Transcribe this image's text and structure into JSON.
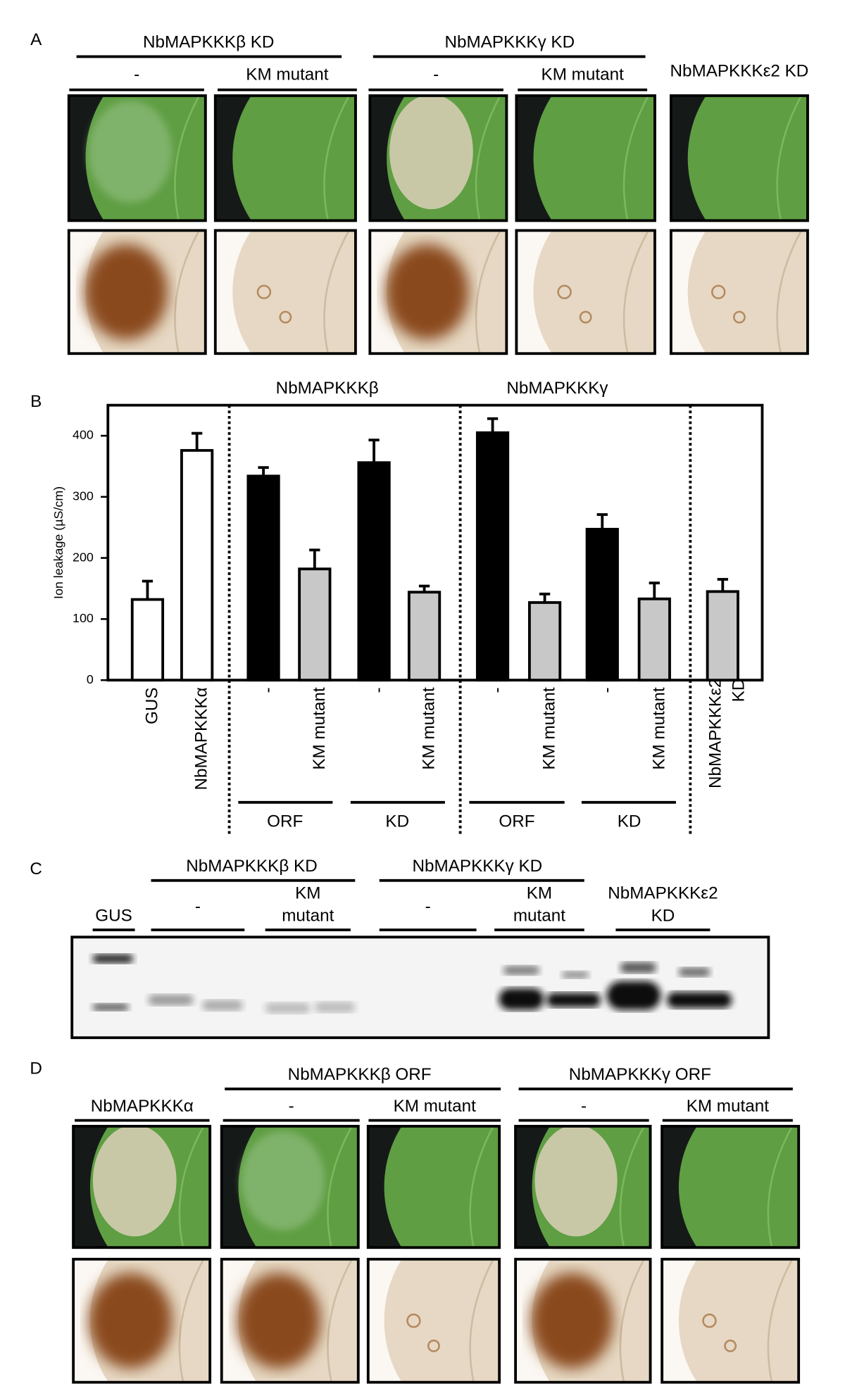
{
  "panel_a": {
    "label": "A",
    "groups": [
      "NbMAPKKKβ KD",
      "NbMAPKKKγ KD"
    ],
    "columns": [
      "-",
      "KM mutant",
      "-",
      "KM mutant",
      "NbMAPKKKε2 KD"
    ]
  },
  "chart_data": {
    "type": "bar",
    "label": "B",
    "y_label": "Ion leakage (µS/cm)",
    "categories": [
      "GUS",
      "NbMAPKKKα",
      "-",
      "KM mutant",
      "-",
      "KM mutant",
      "-",
      "KM mutant",
      "-",
      "KM mutant",
      "NbMAPKKKε2 KD"
    ],
    "values": [
      132,
      376,
      334,
      182,
      356,
      144,
      405,
      127,
      247,
      133,
      145
    ],
    "errors": [
      30,
      28,
      14,
      31,
      37,
      10,
      23,
      14,
      24,
      26,
      20
    ],
    "colors": [
      "#ffffff",
      "#ffffff",
      "#000000",
      "#c8c8c8",
      "#000000",
      "#c8c8c8",
      "#000000",
      "#c8c8c8",
      "#000000",
      "#c8c8c8",
      "#c8c8c8"
    ],
    "ylim": [
      0,
      450
    ],
    "yticks": [
      0,
      100,
      200,
      300,
      400
    ],
    "groups": [
      "NbMAPKKKβ",
      "NbMAPKKKγ"
    ],
    "subgroups": [
      "ORF",
      "KD",
      "ORF",
      "KD"
    ]
  },
  "panel_c": {
    "label": "C",
    "groups": [
      "NbMAPKKKβ KD",
      "NbMAPKKKγ KD"
    ],
    "lanes": [
      [
        "GUS"
      ],
      [
        "-"
      ],
      [
        "KM",
        "mutant"
      ],
      [
        "-"
      ],
      [
        "KM",
        "mutant"
      ],
      [
        "NbMAPKKKε2",
        "KD"
      ]
    ]
  },
  "panel_d": {
    "label": "D",
    "groups": [
      "NbMAPKKKβ ORF",
      "NbMAPKKKγ ORF"
    ],
    "columns": [
      "NbMAPKKKα",
      "-",
      "KM mutant",
      "-",
      "KM mutant"
    ]
  }
}
